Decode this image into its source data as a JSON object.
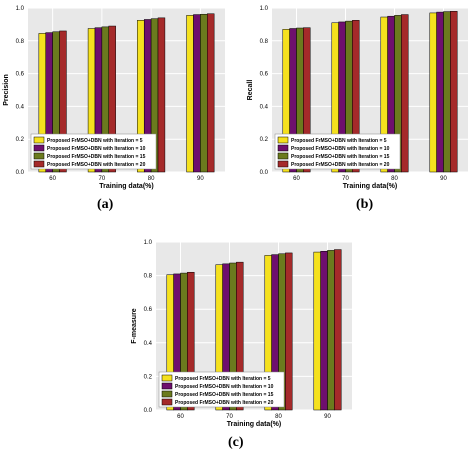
{
  "series_colors": [
    "#f5e11e",
    "#6e0f6e",
    "#6b7a1e",
    "#a52a2a"
  ],
  "chart_data": [
    {
      "type": "bar",
      "categories": [
        "60",
        "70",
        "80",
        "90"
      ],
      "series": [
        {
          "name": "Proposed FrMSO+DBN with Iteration = 5",
          "values": [
            0.845,
            0.875,
            0.925,
            0.955
          ]
        },
        {
          "name": "Proposed FrMSO+DBN with Iteration = 10",
          "values": [
            0.85,
            0.88,
            0.93,
            0.96
          ]
        },
        {
          "name": "Proposed FrMSO+DBN with Iteration = 15",
          "values": [
            0.855,
            0.885,
            0.935,
            0.962
          ]
        },
        {
          "name": "Proposed FrMSO+DBN with Iteration = 20",
          "values": [
            0.86,
            0.89,
            0.94,
            0.965
          ]
        }
      ],
      "xlabel": "Training data(%)",
      "ylabel": "Precision",
      "ylim": [
        0,
        1.0
      ],
      "yticks": [
        "0.0",
        "0.2",
        "0.4",
        "0.6",
        "0.8",
        "1.0"
      ],
      "legend": "bottom-left",
      "grid": true,
      "caption": "(a)"
    },
    {
      "type": "bar",
      "categories": [
        "60",
        "70",
        "80",
        "90"
      ],
      "series": [
        {
          "name": "Proposed FrMSO+DBN with Iteration = 5",
          "values": [
            0.87,
            0.91,
            0.945,
            0.97
          ]
        },
        {
          "name": "Proposed FrMSO+DBN with Iteration = 10",
          "values": [
            0.875,
            0.915,
            0.95,
            0.975
          ]
        },
        {
          "name": "Proposed FrMSO+DBN with Iteration = 15",
          "values": [
            0.878,
            0.92,
            0.955,
            0.978
          ]
        },
        {
          "name": "Proposed FrMSO+DBN with Iteration = 20",
          "values": [
            0.88,
            0.925,
            0.96,
            0.98
          ]
        }
      ],
      "xlabel": "Training data(%)",
      "ylabel": "Recall",
      "ylim": [
        0,
        1.0
      ],
      "yticks": [
        "0.0",
        "0.2",
        "0.4",
        "0.6",
        "0.8",
        "1.0"
      ],
      "legend": "bottom-left",
      "grid": true,
      "caption": "(b)"
    },
    {
      "type": "bar",
      "categories": [
        "60",
        "70",
        "80",
        "90"
      ],
      "series": [
        {
          "name": "Proposed FrMSO+DBN with Iteration = 5",
          "values": [
            0.805,
            0.865,
            0.92,
            0.94
          ]
        },
        {
          "name": "Proposed FrMSO+DBN with Iteration = 10",
          "values": [
            0.81,
            0.87,
            0.925,
            0.945
          ]
        },
        {
          "name": "Proposed FrMSO+DBN with Iteration = 15",
          "values": [
            0.815,
            0.875,
            0.93,
            0.95
          ]
        },
        {
          "name": "Proposed FrMSO+DBN with Iteration = 20",
          "values": [
            0.82,
            0.88,
            0.935,
            0.955
          ]
        }
      ],
      "xlabel": "Training data(%)",
      "ylabel": "F-measure",
      "ylim": [
        0,
        1.0
      ],
      "yticks": [
        "0.0",
        "0.2",
        "0.4",
        "0.6",
        "0.8",
        "1.0"
      ],
      "legend": "bottom-left",
      "grid": true,
      "caption": "(c)"
    }
  ]
}
